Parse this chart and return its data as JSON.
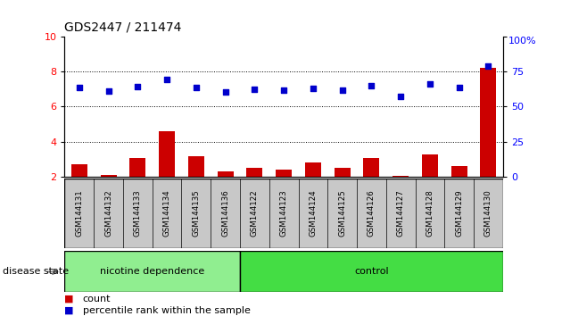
{
  "title": "GDS2447 / 211474",
  "samples": [
    "GSM144131",
    "GSM144132",
    "GSM144133",
    "GSM144134",
    "GSM144135",
    "GSM144136",
    "GSM144122",
    "GSM144123",
    "GSM144124",
    "GSM144125",
    "GSM144126",
    "GSM144127",
    "GSM144128",
    "GSM144129",
    "GSM144130"
  ],
  "count_values": [
    2.7,
    2.1,
    3.1,
    4.6,
    3.2,
    2.3,
    2.5,
    2.4,
    2.8,
    2.5,
    3.1,
    2.05,
    3.3,
    2.6,
    8.2
  ],
  "percentile_values": [
    7.1,
    6.9,
    7.15,
    7.55,
    7.1,
    6.85,
    7.0,
    6.95,
    7.05,
    6.95,
    7.2,
    6.6,
    7.3,
    7.1,
    8.3
  ],
  "nicotine_count": 6,
  "control_count": 9,
  "ylim_left": [
    2,
    10
  ],
  "ylim_right": [
    0,
    100
  ],
  "yticks_left": [
    2,
    4,
    6,
    8,
    10
  ],
  "yticks_right_vals": [
    0,
    25,
    50,
    75,
    100
  ],
  "yticks_right_pos": [
    2.0,
    4.0,
    6.0,
    8.0,
    10.0
  ],
  "bar_color": "#cc0000",
  "dot_color": "#0000cc",
  "nicotine_color": "#90ee90",
  "control_color": "#44dd44",
  "label_bg": "#c8c8c8",
  "legend_count_label": "count",
  "legend_percentile_label": "percentile rank within the sample",
  "disease_state_label": "disease state",
  "nicotine_label": "nicotine dependence",
  "control_label": "control",
  "grid_lines": [
    4,
    6,
    8
  ],
  "dotted_style": ":"
}
